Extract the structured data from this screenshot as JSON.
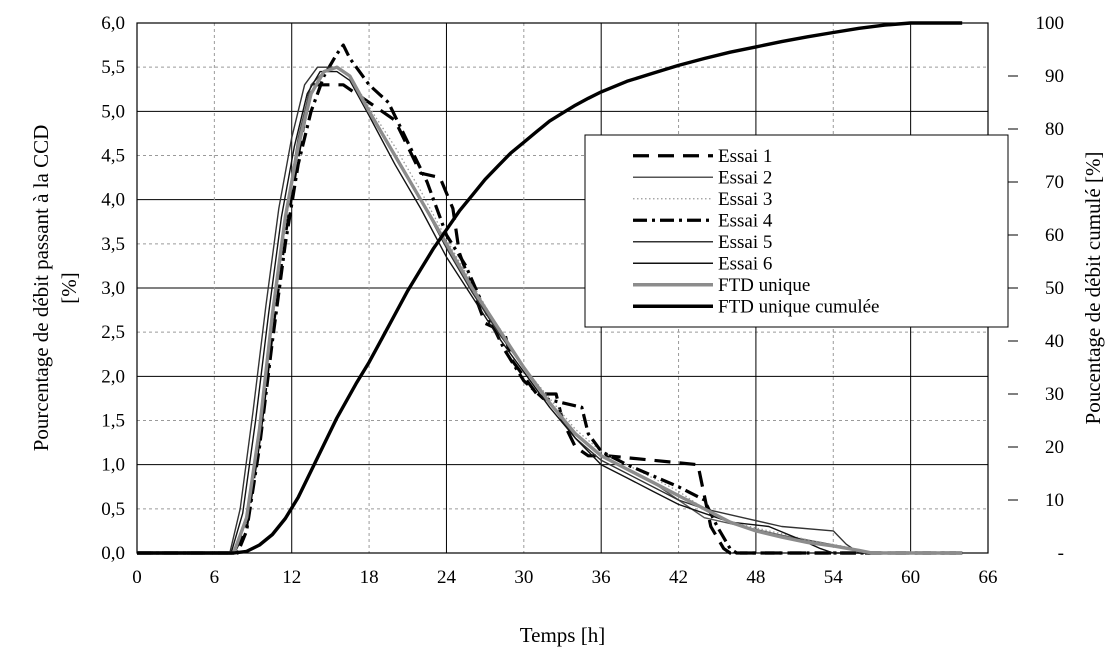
{
  "chart_data": {
    "type": "line",
    "xlabel": "Temps [h]",
    "ylabel_left_line1": "Pourcentage de débit passant à la CCD",
    "ylabel_left_line2": "[%]",
    "ylabel_right": "Poucentage de débit cumulé [%]",
    "xlim": [
      0,
      66
    ],
    "ylim_left": [
      0,
      6
    ],
    "ylim_right": [
      0,
      100
    ],
    "x_ticks": [
      "0",
      "6",
      "12",
      "18",
      "24",
      "30",
      "36",
      "42",
      "48",
      "54",
      "60",
      "66"
    ],
    "y_left_ticks": [
      "0,0",
      "0,5",
      "1,0",
      "1,5",
      "2,0",
      "2,5",
      "3,0",
      "3,5",
      "4,0",
      "4,5",
      "5,0",
      "5,5",
      "6,0"
    ],
    "y_right_ticks": [
      "-",
      "10",
      "20",
      "30",
      "40",
      "50",
      "60",
      "70",
      "80",
      "90",
      "100"
    ],
    "grid": true,
    "legend_position": "right-center",
    "series": [
      {
        "name": "Essai 1",
        "axis": "left",
        "color": "#000000",
        "width": 3.2,
        "dash": "16 9",
        "points": [
          [
            0,
            0
          ],
          [
            7.5,
            0
          ],
          [
            8.5,
            0.3
          ],
          [
            9.5,
            1.3
          ],
          [
            10.5,
            2.5
          ],
          [
            11.5,
            3.6
          ],
          [
            12.5,
            4.5
          ],
          [
            13.5,
            5.3
          ],
          [
            14,
            5.3
          ],
          [
            16,
            5.3
          ],
          [
            17,
            5.2
          ],
          [
            18,
            5.1
          ],
          [
            19,
            5.0
          ],
          [
            20,
            4.9
          ],
          [
            21,
            4.6
          ],
          [
            22,
            4.3
          ],
          [
            23.5,
            4.25
          ],
          [
            24.5,
            3.9
          ],
          [
            25,
            3.4
          ],
          [
            26,
            3.0
          ],
          [
            27,
            2.6
          ],
          [
            28.5,
            2.5
          ],
          [
            29,
            2.2
          ],
          [
            30,
            2.0
          ],
          [
            31,
            1.8
          ],
          [
            32.5,
            1.8
          ],
          [
            33,
            1.5
          ],
          [
            34,
            1.2
          ],
          [
            35,
            1.1
          ],
          [
            36.5,
            1.1
          ],
          [
            43.5,
            1.0
          ],
          [
            44.5,
            0.3
          ],
          [
            45.5,
            0.05
          ],
          [
            46,
            0
          ],
          [
            64,
            0
          ]
        ]
      },
      {
        "name": "Essai 2",
        "axis": "left",
        "color": "#555555",
        "width": 1.4,
        "dash": "",
        "points": [
          [
            0,
            0
          ],
          [
            7.5,
            0
          ],
          [
            8.5,
            0.4
          ],
          [
            9.5,
            1.4
          ],
          [
            10.5,
            2.7
          ],
          [
            11.5,
            3.8
          ],
          [
            12.5,
            4.7
          ],
          [
            13.5,
            5.3
          ],
          [
            14.5,
            5.45
          ],
          [
            15.5,
            5.5
          ],
          [
            16.5,
            5.4
          ],
          [
            18,
            5.0
          ],
          [
            20,
            4.5
          ],
          [
            22,
            4.0
          ],
          [
            24,
            3.5
          ],
          [
            26,
            3.0
          ],
          [
            28,
            2.5
          ],
          [
            30,
            2.1
          ],
          [
            32,
            1.7
          ],
          [
            34,
            1.35
          ],
          [
            36,
            1.1
          ],
          [
            38,
            0.95
          ],
          [
            40,
            0.8
          ],
          [
            42,
            0.6
          ],
          [
            44,
            0.4
          ],
          [
            47,
            0.3
          ],
          [
            50,
            0.2
          ],
          [
            53,
            0.12
          ],
          [
            55.5,
            0.05
          ],
          [
            56.5,
            0
          ],
          [
            64,
            0
          ]
        ]
      },
      {
        "name": "Essai 3",
        "axis": "left",
        "color": "#999999",
        "width": 1.3,
        "dash": "1.5 2.5",
        "points": [
          [
            0,
            0
          ],
          [
            7.5,
            0
          ],
          [
            8.5,
            0.35
          ],
          [
            9.5,
            1.3
          ],
          [
            10.5,
            2.6
          ],
          [
            11.5,
            3.7
          ],
          [
            12.5,
            4.6
          ],
          [
            13.5,
            5.2
          ],
          [
            14.5,
            5.45
          ],
          [
            15.5,
            5.5
          ],
          [
            16.5,
            5.4
          ],
          [
            18,
            5.05
          ],
          [
            20,
            4.6
          ],
          [
            22,
            4.1
          ],
          [
            24,
            3.55
          ],
          [
            26,
            3.05
          ],
          [
            28,
            2.55
          ],
          [
            30,
            2.1
          ],
          [
            32,
            1.75
          ],
          [
            34,
            1.4
          ],
          [
            36,
            1.15
          ],
          [
            38,
            1.0
          ],
          [
            40,
            0.85
          ],
          [
            42,
            0.7
          ],
          [
            44,
            0.5
          ],
          [
            46,
            0.35
          ],
          [
            49,
            0.25
          ],
          [
            52,
            0.15
          ],
          [
            55,
            0.07
          ],
          [
            56.5,
            0
          ],
          [
            64,
            0
          ]
        ]
      },
      {
        "name": "Essai 4",
        "axis": "left",
        "color": "#000000",
        "width": 3.2,
        "dash": "14 5 3 5",
        "points": [
          [
            0,
            0
          ],
          [
            7.8,
            0
          ],
          [
            8.5,
            0.25
          ],
          [
            9.5,
            1.2
          ],
          [
            10.5,
            2.4
          ],
          [
            11.5,
            3.5
          ],
          [
            12.5,
            4.4
          ],
          [
            13.5,
            5.0
          ],
          [
            14.5,
            5.4
          ],
          [
            15.5,
            5.65
          ],
          [
            16,
            5.75
          ],
          [
            16.5,
            5.6
          ],
          [
            18,
            5.3
          ],
          [
            19.5,
            5.1
          ],
          [
            21,
            4.65
          ],
          [
            22.5,
            4.2
          ],
          [
            24,
            3.6
          ],
          [
            25.5,
            3.25
          ],
          [
            27,
            2.75
          ],
          [
            28.5,
            2.3
          ],
          [
            30,
            1.95
          ],
          [
            31.5,
            1.75
          ],
          [
            33,
            1.7
          ],
          [
            34.5,
            1.65
          ],
          [
            35,
            1.35
          ],
          [
            36,
            1.15
          ],
          [
            38,
            1.0
          ],
          [
            42,
            0.75
          ],
          [
            44,
            0.6
          ],
          [
            45,
            0.3
          ],
          [
            46,
            0.05
          ],
          [
            46.5,
            0
          ],
          [
            64,
            0
          ]
        ]
      },
      {
        "name": "Essai 5",
        "axis": "left",
        "color": "#333333",
        "width": 1.4,
        "dash": "",
        "points": [
          [
            0,
            0
          ],
          [
            7.2,
            0
          ],
          [
            8,
            0.5
          ],
          [
            9,
            1.6
          ],
          [
            10,
            2.8
          ],
          [
            11,
            3.9
          ],
          [
            12,
            4.7
          ],
          [
            13,
            5.3
          ],
          [
            14,
            5.5
          ],
          [
            15.5,
            5.5
          ],
          [
            16.5,
            5.4
          ],
          [
            18,
            5.0
          ],
          [
            20,
            4.5
          ],
          [
            22,
            4.0
          ],
          [
            24,
            3.45
          ],
          [
            26,
            2.95
          ],
          [
            28,
            2.5
          ],
          [
            30,
            2.1
          ],
          [
            32,
            1.7
          ],
          [
            34,
            1.3
          ],
          [
            36,
            1.05
          ],
          [
            38,
            0.9
          ],
          [
            40,
            0.75
          ],
          [
            42,
            0.6
          ],
          [
            44,
            0.5
          ],
          [
            47,
            0.4
          ],
          [
            50,
            0.3
          ],
          [
            54,
            0.25
          ],
          [
            55,
            0.1
          ],
          [
            56,
            0
          ],
          [
            64,
            0
          ]
        ]
      },
      {
        "name": "Essai 6",
        "axis": "left",
        "color": "#111111",
        "width": 1.4,
        "dash": "",
        "points": [
          [
            0,
            0
          ],
          [
            7.3,
            0
          ],
          [
            8.2,
            0.45
          ],
          [
            9.2,
            1.5
          ],
          [
            10.2,
            2.7
          ],
          [
            11.2,
            3.8
          ],
          [
            12.2,
            4.6
          ],
          [
            13.2,
            5.2
          ],
          [
            14.2,
            5.45
          ],
          [
            15.5,
            5.45
          ],
          [
            16.5,
            5.35
          ],
          [
            18,
            4.95
          ],
          [
            20,
            4.4
          ],
          [
            22,
            3.9
          ],
          [
            24,
            3.35
          ],
          [
            26,
            2.9
          ],
          [
            28,
            2.45
          ],
          [
            30,
            2.05
          ],
          [
            32,
            1.65
          ],
          [
            34,
            1.3
          ],
          [
            36,
            1.0
          ],
          [
            38,
            0.85
          ],
          [
            40,
            0.7
          ],
          [
            42,
            0.55
          ],
          [
            44,
            0.45
          ],
          [
            46,
            0.35
          ],
          [
            49,
            0.3
          ],
          [
            51.5,
            0.15
          ],
          [
            53,
            0.05
          ],
          [
            54,
            0
          ],
          [
            64,
            0
          ]
        ]
      },
      {
        "name": "FTD unique",
        "axis": "left",
        "color": "#8c8c8c",
        "width": 3.4,
        "dash": "",
        "points": [
          [
            0,
            0
          ],
          [
            7.5,
            0
          ],
          [
            8.5,
            0.4
          ],
          [
            9.5,
            1.4
          ],
          [
            10.5,
            2.7
          ],
          [
            11.5,
            3.8
          ],
          [
            12.5,
            4.6
          ],
          [
            13.5,
            5.2
          ],
          [
            14.5,
            5.45
          ],
          [
            15.5,
            5.5
          ],
          [
            16.5,
            5.4
          ],
          [
            18,
            5.0
          ],
          [
            20,
            4.5
          ],
          [
            22,
            4.0
          ],
          [
            24,
            3.5
          ],
          [
            26,
            3.0
          ],
          [
            28,
            2.55
          ],
          [
            30,
            2.1
          ],
          [
            32,
            1.7
          ],
          [
            34,
            1.35
          ],
          [
            36,
            1.1
          ],
          [
            38,
            0.95
          ],
          [
            40,
            0.8
          ],
          [
            42,
            0.65
          ],
          [
            44,
            0.5
          ],
          [
            46,
            0.35
          ],
          [
            48,
            0.25
          ],
          [
            50,
            0.18
          ],
          [
            52,
            0.12
          ],
          [
            54,
            0.08
          ],
          [
            56,
            0.03
          ],
          [
            57,
            0
          ],
          [
            64,
            0
          ]
        ]
      },
      {
        "name": "FTD unique cumulée",
        "axis": "right",
        "color": "#000000",
        "width": 3.4,
        "dash": "",
        "points": [
          [
            0,
            0
          ],
          [
            7.5,
            0
          ],
          [
            8.5,
            0.3
          ],
          [
            9.5,
            1.5
          ],
          [
            10.5,
            3.5
          ],
          [
            11.5,
            6.5
          ],
          [
            12.5,
            10.5
          ],
          [
            13.5,
            15.5
          ],
          [
            14.5,
            20.5
          ],
          [
            15.5,
            25.5
          ],
          [
            17,
            32
          ],
          [
            18,
            36
          ],
          [
            19,
            40.5
          ],
          [
            20,
            45
          ],
          [
            21,
            49.5
          ],
          [
            22,
            53.5
          ],
          [
            23,
            57.5
          ],
          [
            24,
            61
          ],
          [
            25,
            64.5
          ],
          [
            26,
            67.5
          ],
          [
            27,
            70.5
          ],
          [
            28,
            73
          ],
          [
            29,
            75.5
          ],
          [
            30,
            77.5
          ],
          [
            31,
            79.5
          ],
          [
            32,
            81.5
          ],
          [
            33,
            83
          ],
          [
            34,
            84.5
          ],
          [
            35,
            85.8
          ],
          [
            36,
            87
          ],
          [
            38,
            89
          ],
          [
            40,
            90.5
          ],
          [
            42,
            92
          ],
          [
            44,
            93.3
          ],
          [
            46,
            94.5
          ],
          [
            48,
            95.5
          ],
          [
            50,
            96.5
          ],
          [
            52,
            97.4
          ],
          [
            54,
            98.2
          ],
          [
            56,
            99
          ],
          [
            58,
            99.6
          ],
          [
            60,
            100
          ],
          [
            64,
            100
          ]
        ]
      }
    ]
  }
}
